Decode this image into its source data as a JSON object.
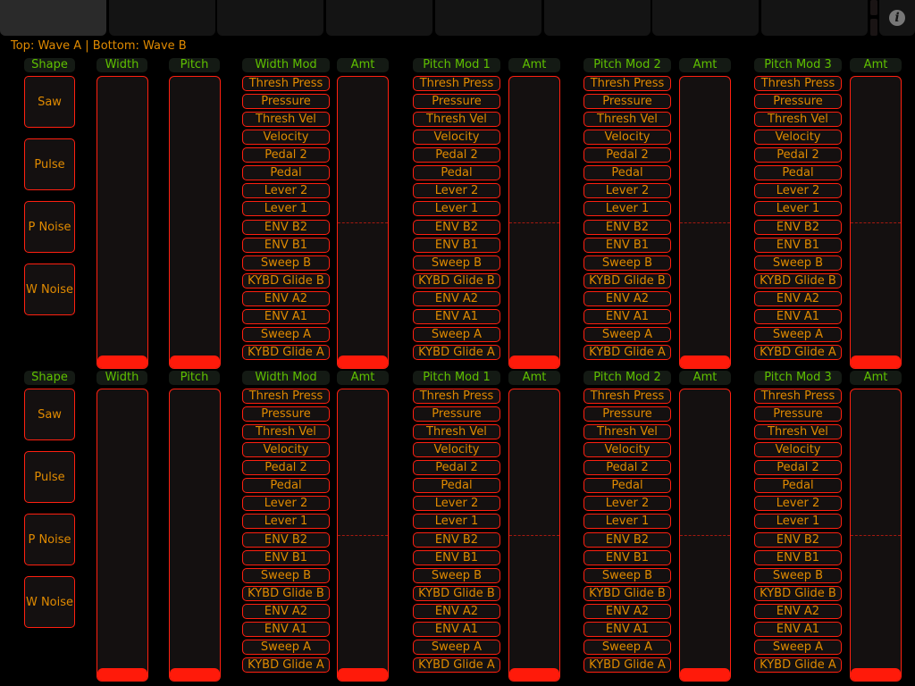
{
  "tabs": [
    {
      "label": "",
      "active": true
    },
    {
      "label": ""
    },
    {
      "label": ""
    },
    {
      "label": ""
    },
    {
      "label": ""
    },
    {
      "label": ""
    },
    {
      "label": ""
    },
    {
      "label": ""
    }
  ],
  "info_icon": "info-icon",
  "caption": "Top: Wave A | Bottom: Wave B",
  "colors": {
    "accent_red": "#ff2010",
    "label_orange": "#e08a00",
    "header_green": "#5fc000"
  },
  "sections": [
    {
      "wave": "Wave A",
      "shape_header": "Shape",
      "shapes": [
        "Saw",
        "Pulse",
        "P Noise",
        "W Noise"
      ],
      "width": {
        "header": "Width",
        "value": 0
      },
      "pitch": {
        "header": "Pitch",
        "value": 0
      },
      "mods": [
        {
          "header": "Width Mod",
          "amt_header": "Amt",
          "amt_value": 0
        },
        {
          "header": "Pitch Mod 1",
          "amt_header": "Amt",
          "amt_value": 0
        },
        {
          "header": "Pitch Mod 2",
          "amt_header": "Amt",
          "amt_value": 0
        },
        {
          "header": "Pitch Mod 3",
          "amt_header": "Amt",
          "amt_value": 0
        }
      ]
    },
    {
      "wave": "Wave B",
      "shape_header": "Shape",
      "shapes": [
        "Saw",
        "Pulse",
        "P Noise",
        "W Noise"
      ],
      "width": {
        "header": "Width",
        "value": 0
      },
      "pitch": {
        "header": "Pitch",
        "value": 0
      },
      "mods": [
        {
          "header": "Width Mod",
          "amt_header": "Amt",
          "amt_value": 0
        },
        {
          "header": "Pitch Mod 1",
          "amt_header": "Amt",
          "amt_value": 0
        },
        {
          "header": "Pitch Mod 2",
          "amt_header": "Amt",
          "amt_value": 0
        },
        {
          "header": "Pitch Mod 3",
          "amt_header": "Amt",
          "amt_value": 0
        }
      ]
    }
  ],
  "mod_sources": [
    "Thresh Press",
    "Pressure",
    "Thresh Vel",
    "Velocity",
    "Pedal 2",
    "Pedal",
    "Lever 2",
    "Lever 1",
    "ENV B2",
    "ENV B1",
    "Sweep B",
    "KYBD Glide B",
    "ENV A2",
    "ENV A1",
    "Sweep A",
    "KYBD Glide A"
  ]
}
